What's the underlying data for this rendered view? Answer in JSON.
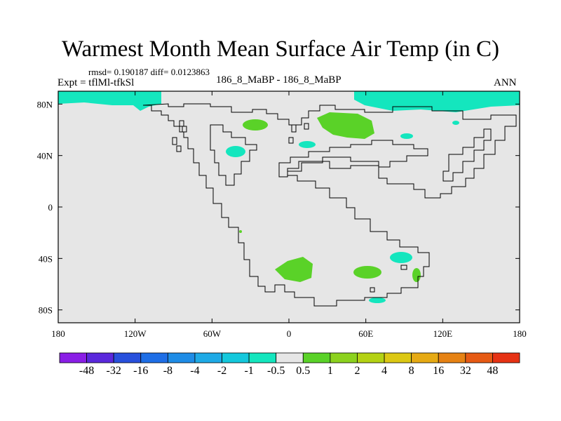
{
  "title": "Warmest Month Mean Surface Air Temp (in C)",
  "stats": "rmsd= 0.190187 diff= 0.0123863",
  "expt": "Expt = tflMl-tfkSl",
  "center": "186_8_MaBP - 186_8_MaBP",
  "period": "ANN",
  "map": {
    "lon_range": [
      -180,
      180
    ],
    "lat_range": [
      -90,
      90
    ],
    "background_color": "#e6e6e6",
    "lon_ticks": [
      {
        "value": -180,
        "label": "180"
      },
      {
        "value": -120,
        "label": "120W"
      },
      {
        "value": -60,
        "label": "60W"
      },
      {
        "value": 0,
        "label": "0"
      },
      {
        "value": 60,
        "label": "60E"
      },
      {
        "value": 120,
        "label": "120E"
      },
      {
        "value": 180,
        "label": "180"
      }
    ],
    "lat_ticks": [
      {
        "value": 80,
        "label": "80N"
      },
      {
        "value": 40,
        "label": "40N"
      },
      {
        "value": 0,
        "label": "0"
      },
      {
        "value": -40,
        "label": "40S"
      },
      {
        "value": -80,
        "label": "80S"
      }
    ]
  },
  "colorbar": {
    "colors": [
      "#8a1ee6",
      "#5a28dc",
      "#2850dc",
      "#1e6ee6",
      "#1e8ce6",
      "#1eaae6",
      "#14c8dc",
      "#14e6be",
      "#e6e6e6",
      "#5ad228",
      "#8cd21e",
      "#b4d214",
      "#dcc814",
      "#e6aa14",
      "#e68214",
      "#e65a14",
      "#e63214"
    ],
    "labels": [
      "-48",
      "-32",
      "-16",
      "-8",
      "-4",
      "-2",
      "-1",
      "-0.5",
      "0.5",
      "1",
      "2",
      "4",
      "8",
      "16",
      "32",
      "48"
    ]
  },
  "anomaly_colors": {
    "cyan": "#14e6be",
    "green": "#5ad228"
  }
}
